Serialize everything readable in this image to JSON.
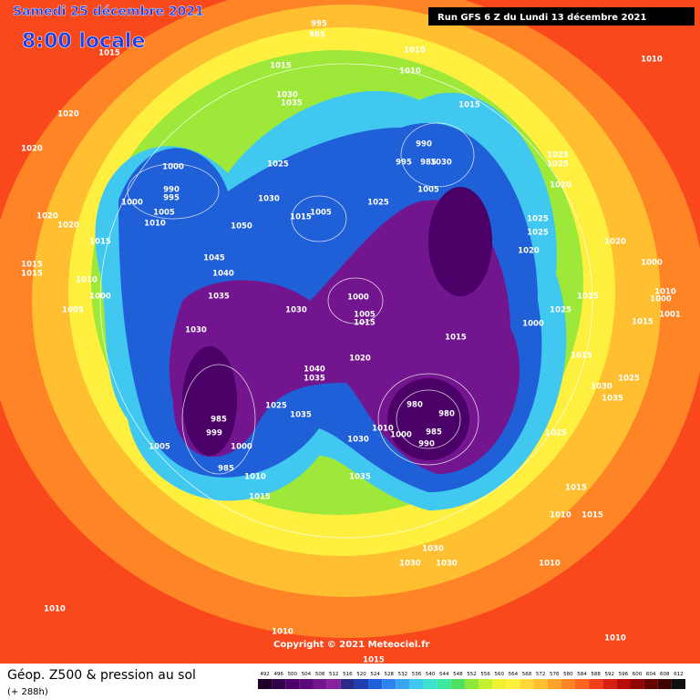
{
  "header": {
    "date": "Samedi 25 décembre 2021",
    "time": "8:00 locale",
    "run": "Run GFS 6 Z du Lundi 13 décembre 2021"
  },
  "copyright": "Copyright © 2021 Meteociel.fr",
  "footer": {
    "title": "Géop. Z500 & pression au sol",
    "lead_time": "(+ 288h)"
  },
  "legend": {
    "labels": [
      492,
      496,
      500,
      504,
      508,
      512,
      516,
      520,
      524,
      528,
      532,
      536,
      540,
      544,
      548,
      552,
      556,
      560,
      564,
      568,
      572,
      576,
      580,
      584,
      588,
      592,
      596,
      600,
      604,
      608,
      612
    ],
    "colors": [
      "#1e0028",
      "#33004a",
      "#4a0066",
      "#5c0a7a",
      "#72158e",
      "#8a22a0",
      "#2a2a8a",
      "#1f3fb0",
      "#1f5fd8",
      "#2f82f0",
      "#3aa5f5",
      "#40c8f0",
      "#3ee0d0",
      "#3ee6a0",
      "#50e060",
      "#8ee83a",
      "#c2f030",
      "#eef030",
      "#fff040",
      "#ffd838",
      "#ffbf30",
      "#ffa22a",
      "#ff8426",
      "#ff6420",
      "#f04018",
      "#d82010",
      "#b80c08",
      "#900404",
      "#680000",
      "#400000",
      "#101010"
    ]
  },
  "isobar_labels": [
    1015,
    1020,
    1020,
    1020,
    1020,
    1015,
    1015,
    1015,
    1010,
    1000,
    1005,
    1000,
    1000,
    990,
    995,
    1005,
    1010,
    1050,
    1045,
    1040,
    1035,
    1030,
    1030,
    1025,
    1030,
    1035,
    1030,
    995,
    985,
    1010,
    1010,
    1015,
    1015,
    990,
    995,
    985,
    1030,
    1005,
    1025,
    1015,
    1005,
    1000,
    1005,
    1015,
    1015,
    1020,
    1040,
    1035,
    1025,
    1035,
    980,
    980,
    985,
    990,
    1010,
    1000,
    1030,
    985,
    999,
    1000,
    1005,
    985,
    1010,
    1015,
    1035,
    1025,
    1025,
    1020,
    1025,
    1025,
    1020,
    1020,
    1000,
    1010,
    1000,
    1001,
    1015,
    1025,
    1025,
    1000,
    1015,
    1030,
    1025,
    1035,
    1025,
    1015,
    1010,
    1015,
    1010,
    1030,
    1030,
    1030,
    1010,
    1010,
    1010,
    1015,
    1010
  ]
}
